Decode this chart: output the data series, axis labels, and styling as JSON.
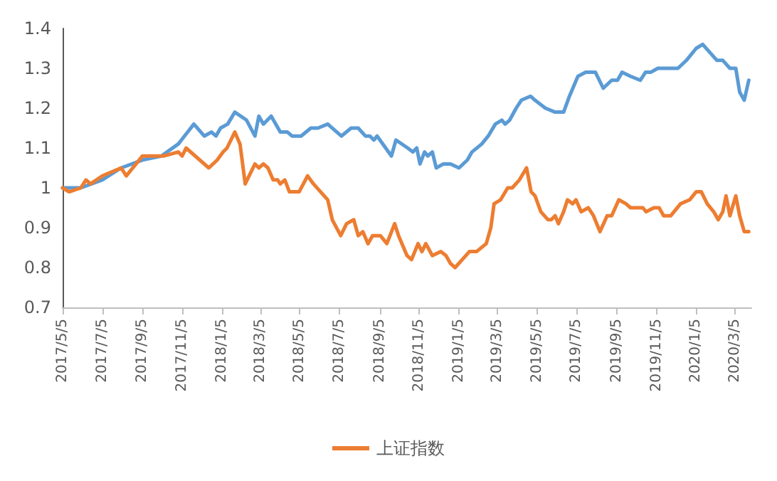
{
  "chart_data": {
    "type": "line",
    "xlim": [
      "2017-05-05",
      "2020-03-30"
    ],
    "xticks": [
      {
        "value": "2017-05-05",
        "label": "2017/5/5"
      },
      {
        "value": "2017-07-05",
        "label": "2017/7/5"
      },
      {
        "value": "2017-09-05",
        "label": "2017/9/5"
      },
      {
        "value": "2017-11-05",
        "label": "2017/11/5"
      },
      {
        "value": "2018-01-05",
        "label": "2018/1/5"
      },
      {
        "value": "2018-03-05",
        "label": "2018/3/5"
      },
      {
        "value": "2018-05-05",
        "label": "2018/5/5"
      },
      {
        "value": "2018-07-05",
        "label": "2018/7/5"
      },
      {
        "value": "2018-09-05",
        "label": "2018/9/5"
      },
      {
        "value": "2018-11-05",
        "label": "2018/11/5"
      },
      {
        "value": "2019-01-05",
        "label": "2019/1/5"
      },
      {
        "value": "2019-03-05",
        "label": "2019/3/5"
      },
      {
        "value": "2019-05-05",
        "label": "2019/5/5"
      },
      {
        "value": "2019-07-05",
        "label": "2019/7/5"
      },
      {
        "value": "2019-09-05",
        "label": "2019/9/5"
      },
      {
        "value": "2019-11-05",
        "label": "2019/11/5"
      },
      {
        "value": "2020-01-05",
        "label": "2020/1/5"
      },
      {
        "value": "2020-03-05",
        "label": "2020/3/5"
      }
    ],
    "ylim": [
      0.7,
      1.4
    ],
    "yticks": [
      0.7,
      0.8,
      0.9,
      1,
      1.1,
      1.2,
      1.3,
      1.4
    ],
    "legend": "bottom",
    "series": [
      {
        "color": "#5b9bd5",
        "x": [
          "2017-05-05",
          "2017-06-02",
          "2017-07-05",
          "2017-08-03",
          "2017-09-05",
          "2017-10-04",
          "2017-10-30",
          "2017-11-23",
          "2017-12-09",
          "2017-12-20",
          "2017-12-27",
          "2018-01-03",
          "2018-01-14",
          "2018-01-25",
          "2018-02-12",
          "2018-02-25",
          "2018-03-03",
          "2018-03-10",
          "2018-03-22",
          "2018-04-05",
          "2018-04-16",
          "2018-04-23",
          "2018-05-07",
          "2018-05-22",
          "2018-06-02",
          "2018-06-17",
          "2018-07-01",
          "2018-07-08",
          "2018-07-23",
          "2018-08-03",
          "2018-08-14",
          "2018-08-21",
          "2018-08-27",
          "2018-09-01",
          "2018-09-23",
          "2018-09-30",
          "2018-10-18",
          "2018-10-26",
          "2018-11-01",
          "2018-11-06",
          "2018-11-13",
          "2018-11-18",
          "2018-11-25",
          "2018-12-01",
          "2018-12-12",
          "2018-12-23",
          "2019-01-05",
          "2019-01-18",
          "2019-01-25",
          "2019-02-09",
          "2019-02-19",
          "2019-03-02",
          "2019-03-12",
          "2019-03-17",
          "2019-03-24",
          "2019-04-03",
          "2019-04-11",
          "2019-04-25",
          "2019-05-02",
          "2019-05-18",
          "2019-06-02",
          "2019-06-09",
          "2019-06-15",
          "2019-06-24",
          "2019-07-07",
          "2019-07-19",
          "2019-08-03",
          "2019-08-15",
          "2019-08-28",
          "2019-09-06",
          "2019-09-13",
          "2019-09-26",
          "2019-10-11",
          "2019-10-19",
          "2019-10-27",
          "2019-11-07",
          "2019-11-20",
          "2019-12-01",
          "2019-12-08",
          "2019-12-21",
          "2020-01-05",
          "2020-01-15",
          "2020-01-26",
          "2020-02-06",
          "2020-02-15",
          "2020-02-26",
          "2020-03-06",
          "2020-03-12",
          "2020-03-19",
          "2020-03-26"
        ],
        "values": [
          1.0,
          1.0,
          1.02,
          1.05,
          1.07,
          1.08,
          1.11,
          1.16,
          1.13,
          1.14,
          1.13,
          1.15,
          1.16,
          1.19,
          1.17,
          1.13,
          1.18,
          1.16,
          1.18,
          1.14,
          1.14,
          1.13,
          1.13,
          1.15,
          1.15,
          1.16,
          1.14,
          1.13,
          1.15,
          1.15,
          1.13,
          1.13,
          1.12,
          1.13,
          1.08,
          1.12,
          1.1,
          1.09,
          1.1,
          1.06,
          1.09,
          1.08,
          1.09,
          1.05,
          1.06,
          1.06,
          1.05,
          1.07,
          1.09,
          1.11,
          1.13,
          1.16,
          1.17,
          1.16,
          1.17,
          1.2,
          1.22,
          1.23,
          1.22,
          1.2,
          1.19,
          1.19,
          1.19,
          1.23,
          1.28,
          1.29,
          1.29,
          1.25,
          1.27,
          1.27,
          1.29,
          1.28,
          1.27,
          1.29,
          1.29,
          1.3,
          1.3,
          1.3,
          1.3,
          1.32,
          1.35,
          1.36,
          1.34,
          1.32,
          1.32,
          1.3,
          1.3,
          1.24,
          1.22,
          1.27
        ]
      },
      {
        "name": "上证指数",
        "color": "#ed7d31",
        "x": [
          "2017-05-05",
          "2017-05-15",
          "2017-06-02",
          "2017-06-10",
          "2017-06-17",
          "2017-07-05",
          "2017-08-03",
          "2017-08-11",
          "2017-09-05",
          "2017-09-27",
          "2017-10-08",
          "2017-10-30",
          "2017-11-05",
          "2017-11-11",
          "2017-12-16",
          "2017-12-29",
          "2018-01-07",
          "2018-01-13",
          "2018-01-25",
          "2018-02-02",
          "2018-02-10",
          "2018-02-25",
          "2018-03-03",
          "2018-03-10",
          "2018-03-17",
          "2018-03-25",
          "2018-04-01",
          "2018-04-05",
          "2018-04-12",
          "2018-04-19",
          "2018-05-04",
          "2018-05-17",
          "2018-05-26",
          "2018-06-06",
          "2018-06-17",
          "2018-06-24",
          "2018-07-07",
          "2018-07-16",
          "2018-07-27",
          "2018-08-03",
          "2018-08-10",
          "2018-08-18",
          "2018-08-25",
          "2018-09-06",
          "2018-09-16",
          "2018-09-28",
          "2018-10-04",
          "2018-10-17",
          "2018-10-24",
          "2018-11-03",
          "2018-11-09",
          "2018-11-15",
          "2018-11-25",
          "2018-12-08",
          "2018-12-16",
          "2018-12-23",
          "2018-12-30",
          "2019-01-10",
          "2019-01-21",
          "2019-02-01",
          "2019-02-16",
          "2019-02-23",
          "2019-02-28",
          "2019-03-10",
          "2019-03-21",
          "2019-03-28",
          "2019-04-08",
          "2019-04-19",
          "2019-04-26",
          "2019-05-02",
          "2019-05-11",
          "2019-05-22",
          "2019-05-27",
          "2019-06-02",
          "2019-06-07",
          "2019-06-15",
          "2019-06-21",
          "2019-06-29",
          "2019-07-04",
          "2019-07-12",
          "2019-07-23",
          "2019-07-31",
          "2019-08-10",
          "2019-08-21",
          "2019-08-28",
          "2019-09-08",
          "2019-09-19",
          "2019-09-26",
          "2019-10-07",
          "2019-10-15",
          "2019-10-20",
          "2019-11-01",
          "2019-11-09",
          "2019-11-16",
          "2019-11-27",
          "2019-12-12",
          "2019-12-26",
          "2020-01-05",
          "2020-01-13",
          "2020-01-22",
          "2020-02-01",
          "2020-02-08",
          "2020-02-15",
          "2020-02-20",
          "2020-02-26",
          "2020-03-06",
          "2020-03-12",
          "2020-03-19",
          "2020-03-26"
        ],
        "values": [
          1.0,
          0.99,
          1.0,
          1.02,
          1.01,
          1.03,
          1.05,
          1.03,
          1.08,
          1.08,
          1.08,
          1.09,
          1.08,
          1.1,
          1.05,
          1.07,
          1.09,
          1.1,
          1.14,
          1.11,
          1.01,
          1.06,
          1.05,
          1.06,
          1.05,
          1.02,
          1.02,
          1.01,
          1.02,
          0.99,
          0.99,
          1.03,
          1.01,
          0.99,
          0.97,
          0.92,
          0.88,
          0.91,
          0.92,
          0.88,
          0.89,
          0.86,
          0.88,
          0.88,
          0.86,
          0.91,
          0.88,
          0.83,
          0.82,
          0.86,
          0.84,
          0.86,
          0.83,
          0.84,
          0.83,
          0.81,
          0.8,
          0.82,
          0.84,
          0.84,
          0.86,
          0.9,
          0.96,
          0.97,
          1.0,
          1.0,
          1.02,
          1.05,
          0.99,
          0.98,
          0.94,
          0.92,
          0.92,
          0.93,
          0.91,
          0.94,
          0.97,
          0.96,
          0.97,
          0.94,
          0.95,
          0.93,
          0.89,
          0.93,
          0.93,
          0.97,
          0.96,
          0.95,
          0.95,
          0.95,
          0.94,
          0.95,
          0.95,
          0.93,
          0.93,
          0.96,
          0.97,
          0.99,
          0.99,
          0.96,
          0.94,
          0.92,
          0.94,
          0.98,
          0.93,
          0.98,
          0.93,
          0.89,
          0.89
        ]
      }
    ]
  }
}
